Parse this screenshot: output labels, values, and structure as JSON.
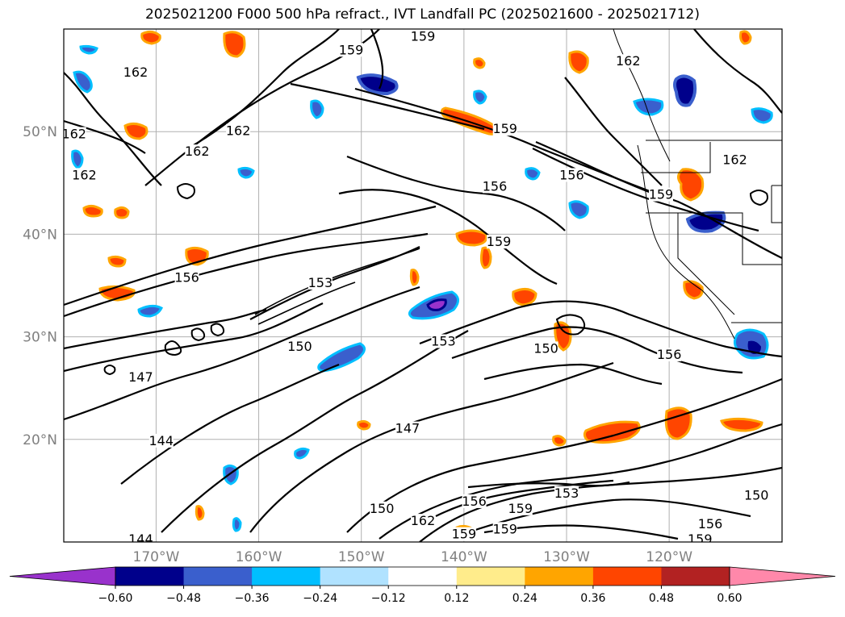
{
  "title": "2025021200 F000 500 hPa refract., IVT Landfall PC (2025021600 - 2025021712)",
  "map": {
    "lon_range": [
      -179,
      -109
    ],
    "lat_range": [
      10,
      60
    ],
    "lat_labels": [
      {
        "lat": 50,
        "label": "50°N"
      },
      {
        "lat": 40,
        "label": "40°N"
      },
      {
        "lat": 30,
        "label": "30°N"
      },
      {
        "lat": 20,
        "label": "20°N"
      }
    ],
    "lon_labels": [
      {
        "lon": -170,
        "label": "170°W"
      },
      {
        "lon": -160,
        "label": "160°W"
      },
      {
        "lon": -150,
        "label": "150°W"
      },
      {
        "lon": -140,
        "label": "140°W"
      },
      {
        "lon": -130,
        "label": "130°W"
      },
      {
        "lon": -120,
        "label": "120°W"
      }
    ],
    "contour_labels": [
      {
        "lon": -172,
        "lat": 55.5,
        "text": "162"
      },
      {
        "lon": -178,
        "lat": 49.5,
        "text": "162"
      },
      {
        "lon": -177,
        "lat": 45.5,
        "text": "162"
      },
      {
        "lon": -166,
        "lat": 47.8,
        "text": "162"
      },
      {
        "lon": -162,
        "lat": 49.8,
        "text": "162"
      },
      {
        "lon": -151,
        "lat": 57.7,
        "text": "159"
      },
      {
        "lon": -144,
        "lat": 59.0,
        "text": "159"
      },
      {
        "lon": -136,
        "lat": 50.0,
        "text": "159"
      },
      {
        "lon": -124,
        "lat": 56.6,
        "text": "162"
      },
      {
        "lon": -129.5,
        "lat": 45.5,
        "text": "156"
      },
      {
        "lon": -137,
        "lat": 44.4,
        "text": "156"
      },
      {
        "lon": -120.8,
        "lat": 43.6,
        "text": "159"
      },
      {
        "lon": -113.6,
        "lat": 47.0,
        "text": "162"
      },
      {
        "lon": -136.6,
        "lat": 39.0,
        "text": "159"
      },
      {
        "lon": -167,
        "lat": 35.5,
        "text": "156"
      },
      {
        "lon": -154,
        "lat": 35.0,
        "text": "153"
      },
      {
        "lon": -156,
        "lat": 28.8,
        "text": "150"
      },
      {
        "lon": -142,
        "lat": 29.3,
        "text": "153"
      },
      {
        "lon": -132,
        "lat": 28.6,
        "text": "150"
      },
      {
        "lon": -120,
        "lat": 28.0,
        "text": "156"
      },
      {
        "lon": -171.5,
        "lat": 25.8,
        "text": "147"
      },
      {
        "lon": -145.5,
        "lat": 20.8,
        "text": "147"
      },
      {
        "lon": -169.5,
        "lat": 19.6,
        "text": "144"
      },
      {
        "lon": -148,
        "lat": 13.0,
        "text": "150"
      },
      {
        "lon": -144,
        "lat": 11.8,
        "text": "162"
      },
      {
        "lon": -139,
        "lat": 13.7,
        "text": "156"
      },
      {
        "lon": -134.5,
        "lat": 13.0,
        "text": "159"
      },
      {
        "lon": -130,
        "lat": 14.5,
        "text": "153"
      },
      {
        "lon": -111.5,
        "lat": 14.3,
        "text": "150"
      },
      {
        "lon": -116,
        "lat": 11.5,
        "text": "156"
      },
      {
        "lon": -117,
        "lat": 10.0,
        "text": "159"
      },
      {
        "lon": -140,
        "lat": 10.5,
        "text": "159"
      },
      {
        "lon": -136,
        "lat": 11.0,
        "text": "159"
      },
      {
        "lon": -171.5,
        "lat": 10.0,
        "text": "144"
      }
    ]
  },
  "colorbar": {
    "ticks": [
      "−0.60",
      "−0.48",
      "−0.36",
      "−0.24",
      "−0.12",
      "0.12",
      "0.24",
      "0.36",
      "0.48",
      "0.60"
    ],
    "colors": [
      "#9932cc",
      "#00008b",
      "#3a5fcd",
      "#00bfff",
      "#b0e2ff",
      "#ffffff",
      "#ffec8b",
      "#ffa500",
      "#ff4500",
      "#b22222",
      "#ff88aa",
      "#ff88aa"
    ]
  }
}
